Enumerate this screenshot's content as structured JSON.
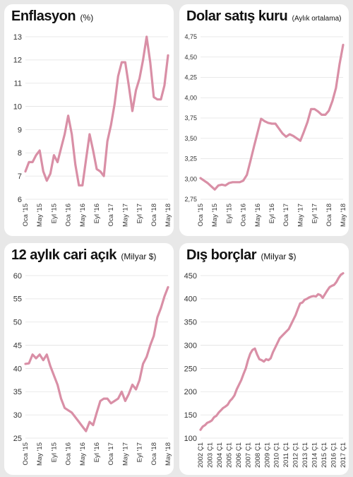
{
  "chart_data": [
    {
      "type": "line",
      "title": "Enflasyon",
      "unit": "(%)",
      "ylim": [
        6,
        13
      ],
      "yticks": [
        "6",
        "7",
        "8",
        "9",
        "10",
        "11",
        "12",
        "13"
      ],
      "xticks": [
        "Oca '15",
        "May '15",
        "Eyl '15",
        "Oca '16",
        "May '16",
        "Eyl '16",
        "Oca '17",
        "May '17",
        "Eyl '17",
        "Oca '18",
        "May '18"
      ],
      "x_range": [
        0,
        40
      ],
      "grid": "horizontal",
      "color": "#d98fa6",
      "series": [
        {
          "values": [
            7.2,
            7.6,
            7.6,
            7.9,
            8.1,
            7.2,
            6.8,
            7.1,
            7.9,
            7.6,
            8.2,
            8.8,
            9.6,
            8.8,
            7.5,
            6.6,
            6.6,
            7.7,
            8.8,
            8.1,
            7.3,
            7.2,
            7.0,
            8.5,
            9.2,
            10.1,
            11.3,
            11.9,
            11.9,
            10.9,
            9.8,
            10.7,
            11.2,
            12.0,
            13.0,
            11.9,
            10.4,
            10.3,
            10.3,
            10.9,
            12.2
          ]
        }
      ]
    },
    {
      "type": "line",
      "title": "Dolar satış kuru",
      "unit": "(Aylık ortalama)",
      "ylim": [
        2.75,
        4.75
      ],
      "yticks": [
        "2,75",
        "3,00",
        "3,25",
        "3,50",
        "3,75",
        "4,00",
        "4,25",
        "4,50",
        "4,75"
      ],
      "xticks": [
        "Oca '15",
        "May '15",
        "Eyl '15",
        "Oca '16",
        "May '16",
        "Eyl '16",
        "Oca '17",
        "May '17",
        "Eyl '17",
        "Oca '18",
        "May '18"
      ],
      "x_range": [
        0,
        40
      ],
      "grid": "horizontal",
      "color": "#d98fa6",
      "series": [
        {
          "values": [
            3.01,
            2.98,
            2.95,
            2.91,
            2.87,
            2.92,
            2.93,
            2.92,
            2.95,
            2.96,
            2.96,
            2.96,
            2.98,
            3.05,
            3.22,
            3.4,
            3.57,
            3.74,
            3.71,
            3.69,
            3.68,
            3.68,
            3.62,
            3.56,
            3.52,
            3.55,
            3.53,
            3.5,
            3.47,
            3.58,
            3.7,
            3.86,
            3.86,
            3.83,
            3.79,
            3.79,
            3.84,
            3.96,
            4.12,
            4.41,
            4.65
          ]
        }
      ]
    },
    {
      "type": "line",
      "title": "12 aylık cari açık",
      "unit": "(Milyar $)",
      "ylim": [
        25,
        60
      ],
      "yticks": [
        "25",
        "30",
        "35",
        "40",
        "45",
        "50",
        "55",
        "60"
      ],
      "xticks": [
        "Oca '15",
        "May '15",
        "Eyl '15",
        "Oca '16",
        "May '16",
        "Eyl '16",
        "Oca '17",
        "May '17",
        "Eyl '17",
        "Oca '18",
        "May '18"
      ],
      "x_range": [
        0,
        40
      ],
      "grid": "horizontal",
      "color": "#d98fa6",
      "series": [
        {
          "values": [
            41.0,
            41.1,
            43.0,
            42.2,
            43.0,
            41.8,
            43.0,
            40.5,
            38.5,
            36.5,
            33.5,
            31.5,
            31.0,
            30.5,
            29.5,
            28.5,
            27.5,
            26.5,
            28.5,
            27.8,
            30.5,
            33.0,
            33.5,
            33.5,
            32.5,
            33.0,
            33.5,
            35.0,
            33.0,
            34.5,
            36.5,
            35.5,
            37.5,
            41.0,
            42.5,
            45.0,
            47.0,
            51.0,
            53.0,
            55.5,
            57.5
          ]
        }
      ]
    },
    {
      "type": "line",
      "title": "Dış borçlar",
      "unit": "(Milyar $)",
      "ylim": [
        100,
        450
      ],
      "yticks": [
        "100",
        "150",
        "200",
        "250",
        "300",
        "350",
        "400",
        "450"
      ],
      "xticks": [
        "2002 Ç1",
        "2003 Ç1",
        "2004 Ç1",
        "2005 Ç1",
        "2006 Ç1",
        "2007 Ç1",
        "2008 Ç1",
        "2009 Ç1",
        "2010 Ç1",
        "2011 Ç1",
        "2012 Ç1",
        "2013 Ç1",
        "2014 Ç1",
        "2015 Ç1",
        "2016 Ç1",
        "2017 Ç1"
      ],
      "x_range": [
        0,
        63
      ],
      "grid": "horizontal",
      "color": "#d98fa6",
      "series": [
        {
          "values": [
            118,
            125,
            128,
            133,
            135,
            138,
            145,
            148,
            155,
            160,
            165,
            168,
            172,
            180,
            185,
            192,
            205,
            215,
            225,
            238,
            250,
            268,
            282,
            290,
            293,
            280,
            270,
            268,
            265,
            270,
            268,
            272,
            285,
            295,
            305,
            315,
            320,
            325,
            330,
            335,
            345,
            355,
            365,
            378,
            390,
            392,
            398,
            400,
            403,
            405,
            406,
            405,
            410,
            408,
            402,
            410,
            418,
            425,
            428,
            430,
            436,
            445,
            452,
            455
          ]
        }
      ]
    }
  ]
}
